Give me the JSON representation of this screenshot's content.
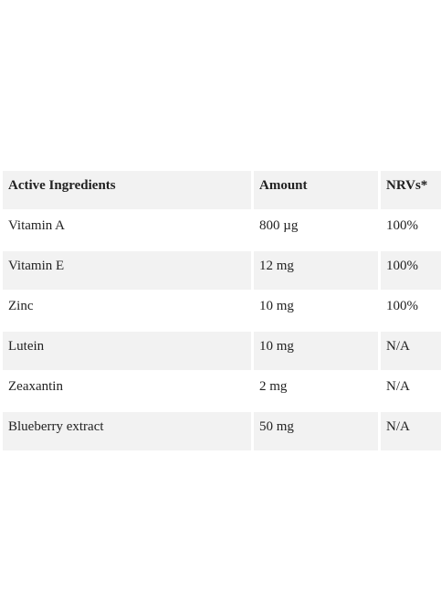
{
  "table": {
    "headers": [
      "Active Ingredients",
      "Amount",
      "NRVs*"
    ],
    "rows": [
      [
        "Vitamin A",
        "800 µg",
        "100%"
      ],
      [
        "Vitamin E",
        "12 mg",
        "100%"
      ],
      [
        "Zinc",
        "10 mg",
        "100%"
      ],
      [
        "Lutein",
        "10 mg",
        "N/A"
      ],
      [
        "Zeaxantin",
        "2 mg",
        "N/A"
      ],
      [
        "Blueberry extract",
        "50 mg",
        "N/A"
      ]
    ]
  }
}
